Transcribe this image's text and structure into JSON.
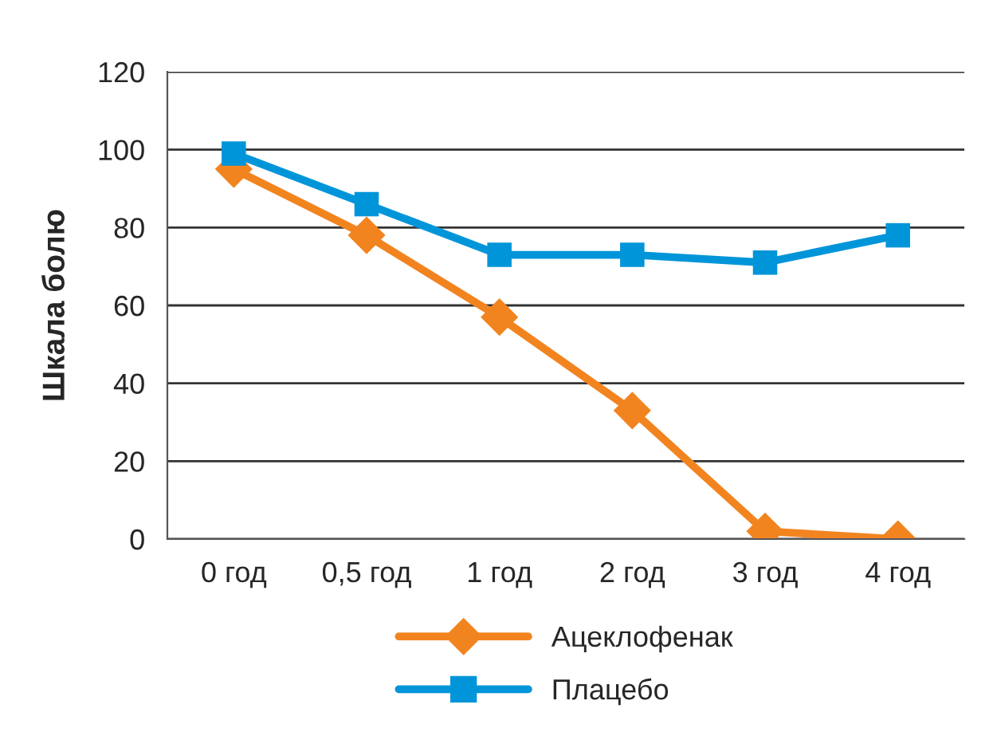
{
  "chart_data": {
    "type": "line",
    "ylabel": "Шкала болю",
    "categories": [
      "0 год",
      "0,5 год",
      "1 год",
      "2 год",
      "3 год",
      "4 год"
    ],
    "series": [
      {
        "name": "Ацеклофенак",
        "color": "#f28420",
        "marker": "diamond",
        "values": [
          95,
          78,
          57,
          33,
          2,
          0
        ]
      },
      {
        "name": "Плацебо",
        "color": "#0095d9",
        "marker": "square",
        "values": [
          99,
          86,
          73,
          73,
          71,
          78
        ]
      }
    ],
    "ylim": [
      0,
      120
    ],
    "yticks": [
      0,
      20,
      40,
      60,
      80,
      100,
      120
    ],
    "grid": "y",
    "legend": "bottom",
    "line_style": "solid"
  }
}
